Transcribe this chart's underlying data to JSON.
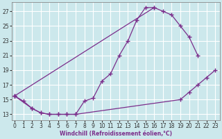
{
  "xlabel": "Windchill (Refroidissement éolien,°C)",
  "ylabel": "",
  "bg_color": "#cce8ec",
  "grid_color": "#ffffff",
  "line_color": "#7b2d8b",
  "x_ticks": [
    0,
    1,
    2,
    3,
    4,
    5,
    6,
    7,
    8,
    9,
    10,
    11,
    12,
    13,
    14,
    15,
    16,
    17,
    18,
    19,
    20,
    21,
    22,
    23
  ],
  "y_ticks": [
    13,
    15,
    17,
    19,
    21,
    23,
    25,
    27
  ],
  "xlim": [
    -0.3,
    23.5
  ],
  "ylim": [
    12.2,
    28.2
  ],
  "series": [
    {
      "x": [
        0,
        1,
        2,
        3,
        4,
        5,
        6,
        7,
        8,
        9,
        10,
        11,
        12,
        13,
        14,
        15,
        16
      ],
      "y": [
        15.5,
        14.8,
        13.8,
        13.2,
        13.0,
        13.0,
        13.0,
        13.0,
        14.8,
        15.2,
        17.5,
        18.5,
        21.0,
        23.0,
        25.8,
        27.5,
        27.5
      ]
    },
    {
      "x": [
        0,
        16,
        17,
        18,
        19,
        20,
        21
      ],
      "y": [
        15.5,
        27.5,
        27.0,
        26.5,
        25.0,
        23.5,
        21.0
      ]
    },
    {
      "x": [
        0,
        2,
        3,
        4,
        5,
        6,
        7,
        19,
        20,
        21,
        22,
        23
      ],
      "y": [
        15.5,
        13.8,
        13.2,
        13.0,
        13.0,
        13.0,
        13.0,
        15.0,
        16.0,
        17.0,
        18.0,
        19.0
      ]
    }
  ]
}
